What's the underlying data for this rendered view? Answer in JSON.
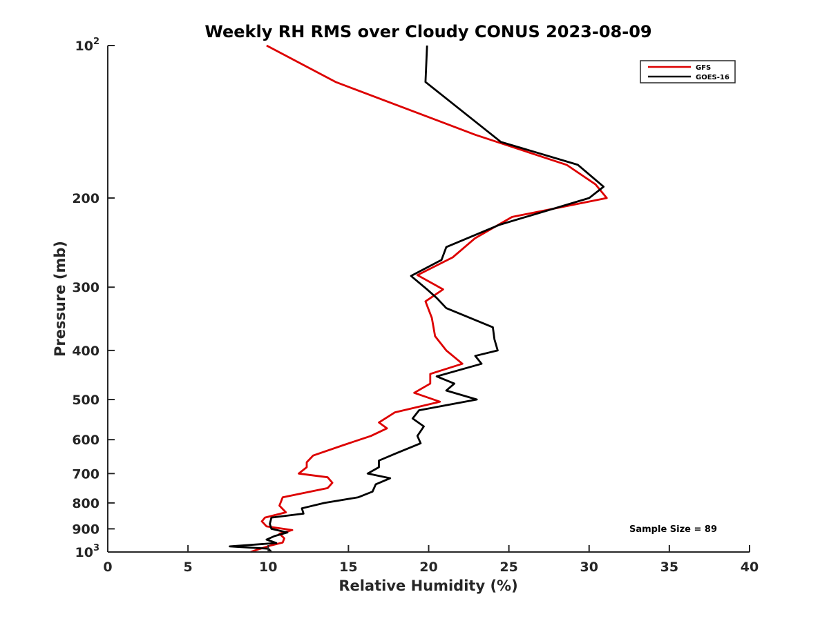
{
  "chart_data": {
    "type": "line",
    "title": "Weekly RH RMS over Cloudy CONUS 2023-08-09",
    "xlabel": "Relative Humidity (%)",
    "ylabel": "Pressure (mb)",
    "xlim": [
      0,
      40
    ],
    "ylim": [
      100,
      1000
    ],
    "y_scale": "log",
    "y_reversed": true,
    "grid": false,
    "legend_position": "top-right",
    "x_ticks": [
      0,
      5,
      10,
      15,
      20,
      25,
      30,
      35,
      40
    ],
    "y_ticks": [
      {
        "value": 100,
        "base": "10",
        "exp": "2"
      },
      {
        "value": 200,
        "label": "200"
      },
      {
        "value": 300,
        "label": "300"
      },
      {
        "value": 400,
        "label": "400"
      },
      {
        "value": 500,
        "label": "500"
      },
      {
        "value": 600,
        "label": "600"
      },
      {
        "value": 700,
        "label": "700"
      },
      {
        "value": 800,
        "label": "800"
      },
      {
        "value": 900,
        "label": "900"
      },
      {
        "value": 1000,
        "base": "10",
        "exp": "3"
      }
    ],
    "annotation": "Sample Size = 89",
    "series": [
      {
        "name": "GFS",
        "color": "#dd0000",
        "points": [
          [
            9.9,
            100
          ],
          [
            14.2,
            118
          ],
          [
            22.9,
            150
          ],
          [
            28.6,
            172
          ],
          [
            30.4,
            188
          ],
          [
            31.1,
            200
          ],
          [
            25.2,
            218
          ],
          [
            22.9,
            240
          ],
          [
            21.5,
            262
          ],
          [
            19.3,
            284
          ],
          [
            20.9,
            303
          ],
          [
            19.8,
            320
          ],
          [
            20.2,
            345
          ],
          [
            20.4,
            375
          ],
          [
            21.1,
            400
          ],
          [
            22.1,
            425
          ],
          [
            20.1,
            445
          ],
          [
            20.1,
            465
          ],
          [
            19.1,
            485
          ],
          [
            20.7,
            505
          ],
          [
            17.9,
            530
          ],
          [
            16.9,
            555
          ],
          [
            17.4,
            570
          ],
          [
            16.4,
            590
          ],
          [
            14.7,
            615
          ],
          [
            12.8,
            645
          ],
          [
            12.4,
            665
          ],
          [
            12.4,
            680
          ],
          [
            11.9,
            700
          ],
          [
            13.7,
            712
          ],
          [
            14.0,
            730
          ],
          [
            13.7,
            748
          ],
          [
            10.9,
            780
          ],
          [
            10.7,
            810
          ],
          [
            11.1,
            835
          ],
          [
            9.8,
            855
          ],
          [
            9.6,
            870
          ],
          [
            9.9,
            890
          ],
          [
            11.5,
            905
          ],
          [
            10.7,
            920
          ],
          [
            11.0,
            940
          ],
          [
            10.9,
            958
          ],
          [
            10.1,
            972
          ],
          [
            9.3,
            990
          ],
          [
            8.9,
            1000
          ]
        ]
      },
      {
        "name": "GOES-16",
        "color": "#000000",
        "points": [
          [
            19.9,
            100
          ],
          [
            19.8,
            118
          ],
          [
            24.5,
            155
          ],
          [
            29.3,
            172
          ],
          [
            30.9,
            190
          ],
          [
            30.0,
            200
          ],
          [
            24.4,
            226
          ],
          [
            21.1,
            250
          ],
          [
            20.8,
            265
          ],
          [
            18.9,
            285
          ],
          [
            19.9,
            303
          ],
          [
            20.5,
            315
          ],
          [
            21.1,
            330
          ],
          [
            24.0,
            360
          ],
          [
            24.1,
            380
          ],
          [
            24.3,
            400
          ],
          [
            22.9,
            410
          ],
          [
            23.3,
            425
          ],
          [
            20.5,
            450
          ],
          [
            21.6,
            465
          ],
          [
            21.1,
            480
          ],
          [
            23.0,
            500
          ],
          [
            19.4,
            525
          ],
          [
            19.0,
            545
          ],
          [
            19.7,
            565
          ],
          [
            19.3,
            590
          ],
          [
            19.5,
            610
          ],
          [
            17.9,
            640
          ],
          [
            16.9,
            660
          ],
          [
            16.9,
            680
          ],
          [
            16.2,
            700
          ],
          [
            17.6,
            715
          ],
          [
            16.7,
            735
          ],
          [
            16.5,
            760
          ],
          [
            15.6,
            780
          ],
          [
            13.5,
            800
          ],
          [
            12.1,
            820
          ],
          [
            12.2,
            840
          ],
          [
            10.2,
            855
          ],
          [
            10.1,
            880
          ],
          [
            10.2,
            900
          ],
          [
            11.2,
            915
          ],
          [
            10.4,
            930
          ],
          [
            9.9,
            945
          ],
          [
            10.5,
            960
          ],
          [
            7.6,
            975
          ],
          [
            10.0,
            985
          ],
          [
            10.2,
            1000
          ]
        ]
      }
    ]
  }
}
